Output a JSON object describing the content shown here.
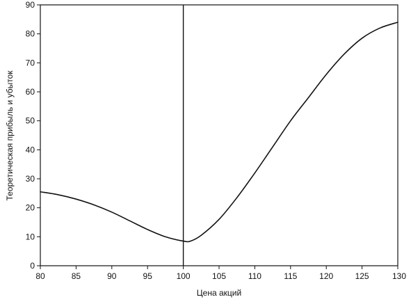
{
  "chart_data": {
    "type": "line",
    "xlabel": "Цена акций",
    "ylabel": "Теоретическая прибыль и убыток",
    "xlim": [
      80,
      130
    ],
    "ylim": [
      0,
      90
    ],
    "x_ticks": [
      "80",
      "85",
      "90",
      "95",
      "100",
      "105",
      "110",
      "115",
      "120",
      "125",
      "130"
    ],
    "y_ticks": [
      "0",
      "10",
      "20",
      "30",
      "40",
      "50",
      "60",
      "70",
      "80",
      "90"
    ],
    "grid": false,
    "legend": "none",
    "reference_line": {
      "orientation": "vertical",
      "x": 100
    },
    "series": [
      {
        "x": [
          80,
          82.5,
          85,
          87.5,
          90,
          92.5,
          95,
          97.5,
          100,
          101,
          102.5,
          105,
          107.5,
          110,
          112.5,
          115,
          117.5,
          120,
          122.5,
          125,
          127.5,
          130
        ],
        "y": [
          25.5,
          24.5,
          23,
          21,
          18.5,
          15.5,
          12.5,
          10,
          8.5,
          8.5,
          10.5,
          16,
          23.5,
          32,
          41,
          50,
          58,
          66,
          73,
          78.5,
          82,
          84
        ],
        "color": "#111111"
      }
    ]
  }
}
